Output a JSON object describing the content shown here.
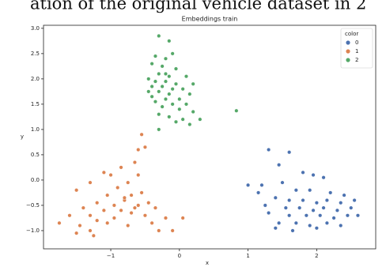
{
  "caption": "ation of the original vehicle dataset in 2",
  "chart_data": {
    "type": "scatter",
    "title": "Embeddings train",
    "x_label": "x",
    "y_label": "y",
    "legend_title": "color",
    "legend_position": "upper right",
    "xlim": [
      -1.98,
      2.86
    ],
    "ylim": [
      -1.36,
      3.06
    ],
    "xticks": [
      {
        "value": -1,
        "label": "−1"
      },
      0,
      1,
      2
    ],
    "yticks": [
      {
        "value": 3,
        "label": "3.0"
      },
      {
        "value": 2.5,
        "label": "2.5"
      },
      {
        "value": 2,
        "label": "2.0"
      },
      {
        "value": 1.5,
        "label": "1.5"
      },
      {
        "value": 1,
        "label": "1.0"
      },
      {
        "value": 0.5,
        "label": "0.5"
      },
      {
        "value": 0,
        "label": "0.0"
      },
      {
        "value": -0.5,
        "label": "−0.5"
      },
      {
        "value": -1,
        "label": "−1.0"
      }
    ],
    "series": [
      {
        "name": "0",
        "color": "#4c72b0",
        "x": [
          1.3,
          1.6,
          1.45,
          1.8,
          1.95,
          2.1,
          1.0,
          1.2,
          1.5,
          1.7,
          1.9,
          2.2,
          2.4,
          1.4,
          1.6,
          1.8,
          2.0,
          2.15,
          2.35,
          2.55,
          1.25,
          1.55,
          1.75,
          1.95,
          2.1,
          2.3,
          2.5,
          1.3,
          1.6,
          1.85,
          2.05,
          2.25,
          2.45,
          2.6,
          1.45,
          1.7,
          1.9,
          2.15,
          2.35,
          1.4,
          1.65,
          2.0,
          1.15
        ],
        "y": [
          0.6,
          0.55,
          0.3,
          0.15,
          0.1,
          0.05,
          -0.1,
          -0.1,
          -0.05,
          -0.2,
          -0.2,
          -0.25,
          -0.3,
          -0.35,
          -0.4,
          -0.4,
          -0.45,
          -0.4,
          -0.45,
          -0.4,
          -0.5,
          -0.55,
          -0.55,
          -0.6,
          -0.55,
          -0.6,
          -0.55,
          -0.65,
          -0.7,
          -0.7,
          -0.7,
          -0.75,
          -0.7,
          -0.7,
          -0.85,
          -0.85,
          -0.9,
          -0.85,
          -0.9,
          -0.95,
          -1.0,
          -0.95,
          -0.25
        ]
      },
      {
        "name": "1",
        "color": "#dd8452",
        "x": [
          -0.55,
          -0.6,
          -0.5,
          -0.65,
          -0.85,
          -0.6,
          -1.0,
          -1.1,
          -0.75,
          -1.3,
          -0.9,
          -1.5,
          -0.55,
          -0.7,
          -1.05,
          -0.8,
          -0.45,
          -1.2,
          -0.95,
          -0.6,
          -0.35,
          -1.4,
          -0.85,
          -1.1,
          -0.7,
          -0.5,
          -1.6,
          -1.3,
          -0.95,
          -0.2,
          0.05,
          -1.2,
          -1.75,
          -1.45,
          -1.05,
          -0.75,
          -0.4,
          -1.3,
          -1.5,
          -1.25,
          -0.1,
          -0.3,
          -0.65,
          -0.8
        ],
        "y": [
          0.9,
          0.6,
          0.65,
          0.35,
          0.25,
          0.1,
          0.1,
          0.15,
          -0.05,
          -0.05,
          -0.15,
          -0.2,
          -0.25,
          -0.3,
          -0.3,
          -0.4,
          -0.45,
          -0.45,
          -0.5,
          -0.5,
          -0.55,
          -0.55,
          -0.6,
          -0.6,
          -0.65,
          -0.7,
          -0.7,
          -0.7,
          -0.75,
          -0.75,
          -0.75,
          -0.8,
          -0.85,
          -0.9,
          -0.85,
          -0.9,
          -0.85,
          -1.0,
          -1.05,
          -1.1,
          -1.0,
          -1.0,
          -0.55,
          -0.35
        ]
      },
      {
        "name": "2",
        "color": "#55a868",
        "x": [
          -0.3,
          -0.15,
          -0.35,
          -0.2,
          -0.1,
          -0.4,
          -0.25,
          -0.05,
          -0.3,
          -0.15,
          -0.45,
          -0.35,
          -0.2,
          -0.05,
          0.1,
          -0.4,
          -0.25,
          -0.1,
          0.05,
          -0.3,
          -0.15,
          0.15,
          -0.4,
          -0.2,
          0,
          -0.35,
          -0.1,
          0.1,
          -0.25,
          0,
          0.2,
          -0.3,
          -0.15,
          0.05,
          -0.05,
          0.3,
          -0.3,
          0.15,
          0.83,
          -0.45,
          0.2,
          -0.2
        ],
        "y": [
          2.85,
          2.75,
          2.45,
          2.4,
          2.5,
          2.3,
          2.25,
          2.2,
          2.1,
          2.05,
          2.0,
          1.95,
          1.95,
          1.9,
          2.05,
          1.85,
          1.85,
          1.8,
          1.8,
          1.75,
          1.7,
          1.7,
          1.65,
          1.6,
          1.6,
          1.55,
          1.5,
          1.5,
          1.45,
          1.4,
          1.35,
          1.3,
          1.25,
          1.2,
          1.15,
          1.2,
          1.0,
          1.1,
          1.37,
          1.75,
          1.9,
          2.1
        ]
      }
    ]
  }
}
